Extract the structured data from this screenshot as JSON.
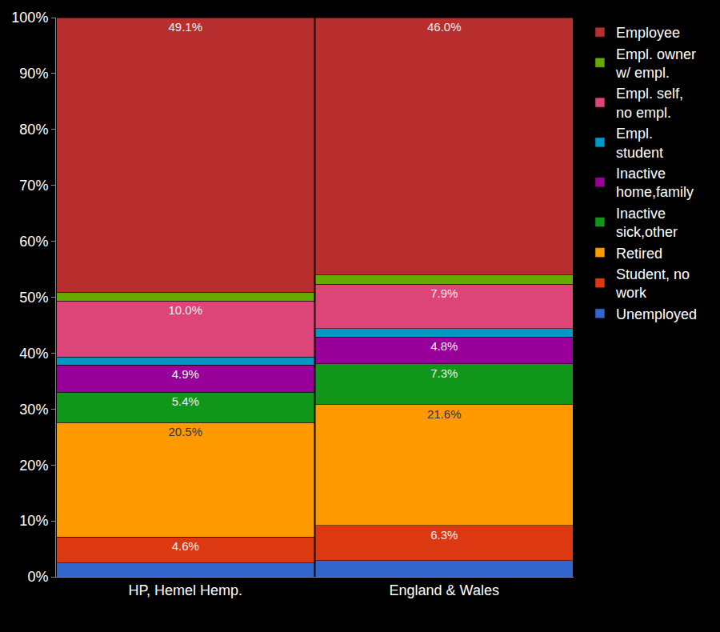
{
  "chart_data": {
    "type": "bar",
    "stacked": true,
    "data_labels": true,
    "grid": false,
    "legend": "top right",
    "categories": [
      "HP, Hemel Hemp.",
      "England & Wales"
    ],
    "ylim": [
      0,
      100
    ],
    "yticks": [
      {
        "value": 0,
        "label": "0%"
      },
      {
        "value": 10,
        "label": "10%"
      },
      {
        "value": 20,
        "label": "20%"
      },
      {
        "value": 30,
        "label": "30%"
      },
      {
        "value": 40,
        "label": "40%"
      },
      {
        "value": 50,
        "label": "50%"
      },
      {
        "value": 60,
        "label": "60%"
      },
      {
        "value": 70,
        "label": "70%"
      },
      {
        "value": 80,
        "label": "80%"
      },
      {
        "value": 90,
        "label": "90%"
      },
      {
        "value": 100,
        "label": "100%"
      }
    ],
    "series": [
      {
        "name": "Employee",
        "color": "#b82e2e",
        "values": [
          49.1,
          46.0
        ],
        "value_labels": [
          "49.1%",
          "46.0%"
        ]
      },
      {
        "name": "Empl. owner w/ empl.",
        "color": "#66aa00",
        "values": [
          1.6,
          1.7
        ]
      },
      {
        "name": "Empl. self, no empl.",
        "color": "#dd4477",
        "values": [
          10.0,
          7.9
        ],
        "value_labels": [
          "10.0%",
          "7.9%"
        ]
      },
      {
        "name": "Empl. student",
        "color": "#0099c6",
        "values": [
          1.4,
          1.5
        ]
      },
      {
        "name": "Inactive home,family",
        "color": "#990099",
        "values": [
          4.9,
          4.8
        ],
        "value_labels": [
          "4.9%",
          "4.8%"
        ]
      },
      {
        "name": "Inactive sick,other",
        "color": "#109618",
        "values": [
          5.4,
          7.3
        ],
        "value_labels": [
          "5.4%",
          "7.3%"
        ]
      },
      {
        "name": "Retired",
        "color": "#ff9900",
        "values": [
          20.5,
          21.6
        ],
        "value_labels": [
          "20.5%",
          "21.6%"
        ]
      },
      {
        "name": "Student, no work",
        "color": "#dc3912",
        "values": [
          4.6,
          6.3
        ],
        "value_labels": [
          "4.6%",
          "6.3%"
        ]
      },
      {
        "name": "Unemployed",
        "color": "#3366cc",
        "values": [
          2.5,
          2.9
        ]
      }
    ]
  }
}
